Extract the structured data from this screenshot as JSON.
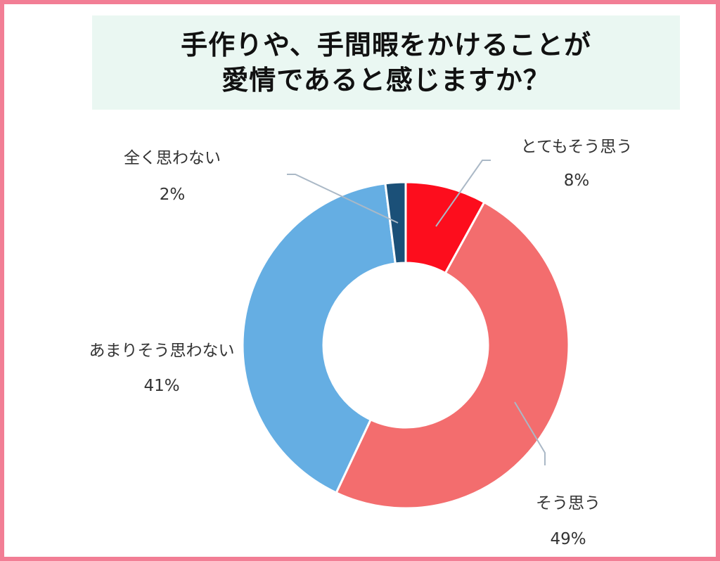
{
  "title": {
    "line1": "手作りや、手間暇をかけることが",
    "line2": "愛情であると感じますか？"
  },
  "chart_data": {
    "type": "pie",
    "donut": true,
    "title": "手作りや、手間暇をかけることが愛情であると感じますか？",
    "categories": [
      "とてもそう思う",
      "そう思う",
      "あまりそう思わない",
      "全く思わない"
    ],
    "values": [
      8,
      49,
      41,
      2
    ],
    "value_labels": [
      "8%",
      "49%",
      "41%",
      "2%"
    ],
    "colors": [
      "#fd0d1d",
      "#f36d6e",
      "#65aee3",
      "#1b5078"
    ],
    "legend": "none"
  }
}
